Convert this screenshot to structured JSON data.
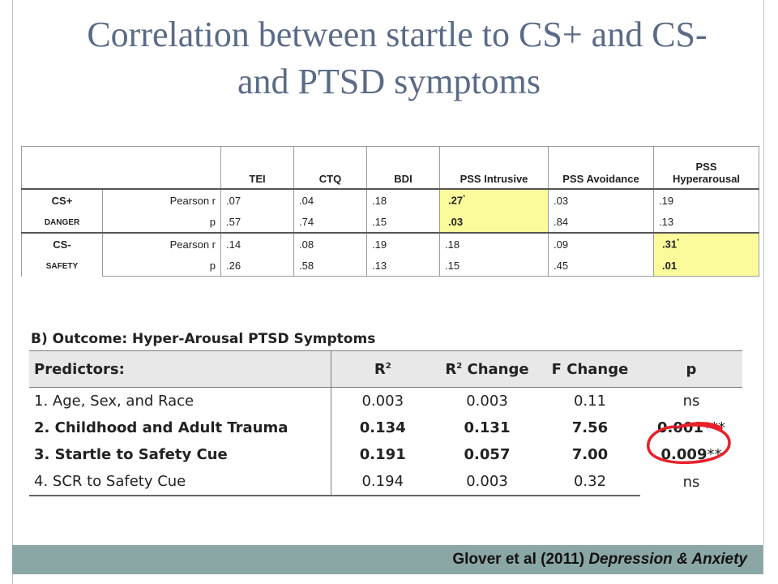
{
  "title": {
    "line1": "Correlation between startle to CS+ and CS-",
    "line2": "and PTSD symptoms"
  },
  "table_a": {
    "columns": [
      "TEI",
      "CTQ",
      "BDI",
      "PSS Intrusive",
      "PSS Avoidance",
      "PSS Hyperarousal"
    ],
    "col_pss_hyper_line1": "PSS",
    "col_pss_hyper_line2": "Hyperarousal",
    "rows": [
      {
        "label": "CS+",
        "sublabel": "DANGER",
        "pearson_label": "Pearson r",
        "p_label": "p",
        "r": [
          ".07",
          ".04",
          ".18",
          ".27",
          ".03",
          ".19"
        ],
        "p": [
          ".57",
          ".74",
          ".15",
          ".03",
          ".84",
          ".13"
        ],
        "star": "*"
      },
      {
        "label": "CS-",
        "sublabel": "SAFETY",
        "pearson_label": "Pearson r",
        "p_label": "p",
        "r": [
          ".14",
          ".08",
          ".19",
          ".18",
          ".09",
          ".31"
        ],
        "p": [
          ".26",
          ".58",
          ".13",
          ".15",
          ".45",
          ".01"
        ],
        "star": "*"
      }
    ]
  },
  "table_b": {
    "title": "B) Outcome: Hyper-Arousal PTSD Symptoms",
    "headers": {
      "predictors": "Predictors:",
      "r2": "R",
      "r2_sup": "2",
      "r2change": "R",
      "r2change_sup": "2",
      "r2change_rest": " Change",
      "fchange": "F Change",
      "p": "p"
    },
    "rows": [
      {
        "predictor": "1. Age, Sex, and Race",
        "r2": "0.003",
        "r2change": "0.003",
        "fchange": "0.11",
        "p": "ns",
        "stars": ""
      },
      {
        "predictor": "2. Childhood and Adult Trauma",
        "r2": "0.134",
        "r2change": "0.131",
        "fchange": "7.56",
        "p": "0.001",
        "stars": "***"
      },
      {
        "predictor": "3. Startle to Safety Cue",
        "r2": "0.191",
        "r2change": "0.057",
        "fchange": "7.00",
        "p": "0.009",
        "stars": "**"
      },
      {
        "predictor": "4. SCR to Safety Cue",
        "r2": "0.194",
        "r2change": "0.003",
        "fchange": "0.32",
        "p": "ns",
        "stars": ""
      }
    ]
  },
  "footer": {
    "authors": "Glover et al (2011)",
    "journal": "Depression & Anxiety"
  },
  "colors": {
    "title": "#5a6b87",
    "highlight": "#fbfb9c",
    "footer_bar": "#8aa7a5",
    "circle": "#e8202a"
  }
}
